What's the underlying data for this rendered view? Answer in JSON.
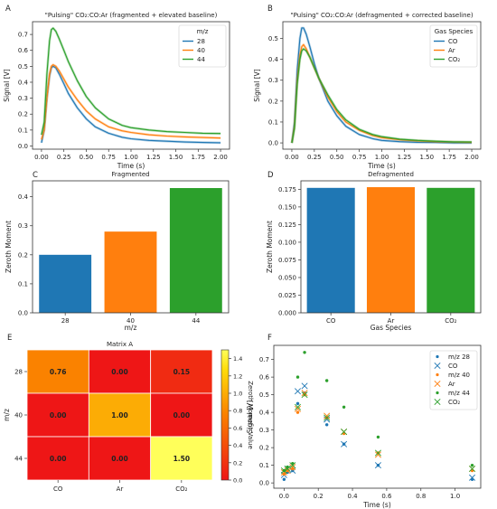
{
  "chart_data": [
    {
      "panel": "A",
      "type": "line",
      "title": "\"Pulsing\" CO₂:CO:Ar (fragmented + elevated baseline)",
      "xlabel": "Time (s)",
      "ylabel": "Signal [V]",
      "xlim": [
        -0.1,
        2.1
      ],
      "ylim": [
        -0.02,
        0.78
      ],
      "xticks": [
        "0.00",
        "0.25",
        "0.50",
        "0.75",
        "1.00",
        "1.25",
        "1.50",
        "1.75",
        "2.00"
      ],
      "yticks": [
        "0.0",
        "0.1",
        "0.2",
        "0.3",
        "0.4",
        "0.5",
        "0.6",
        "0.7"
      ],
      "legend_title": "m/z",
      "legend_position": "top-right",
      "series": [
        {
          "name": "28",
          "color": "#1f77b4",
          "x": [
            0.0,
            0.03,
            0.06,
            0.09,
            0.11,
            0.13,
            0.16,
            0.2,
            0.25,
            0.3,
            0.4,
            0.5,
            0.6,
            0.75,
            0.9,
            1.0,
            1.2,
            1.4,
            1.6,
            1.8,
            2.0
          ],
          "y": [
            0.02,
            0.1,
            0.3,
            0.44,
            0.49,
            0.5,
            0.49,
            0.45,
            0.39,
            0.33,
            0.24,
            0.17,
            0.12,
            0.08,
            0.055,
            0.045,
            0.035,
            0.03,
            0.025,
            0.022,
            0.02
          ]
        },
        {
          "name": "40",
          "color": "#ff7f0e",
          "x": [
            0.0,
            0.03,
            0.06,
            0.09,
            0.11,
            0.13,
            0.16,
            0.2,
            0.25,
            0.3,
            0.4,
            0.5,
            0.6,
            0.75,
            0.9,
            1.0,
            1.2,
            1.4,
            1.6,
            1.8,
            2.0
          ],
          "y": [
            0.04,
            0.1,
            0.3,
            0.45,
            0.5,
            0.51,
            0.5,
            0.47,
            0.42,
            0.37,
            0.29,
            0.22,
            0.17,
            0.12,
            0.095,
            0.085,
            0.07,
            0.062,
            0.057,
            0.053,
            0.05
          ]
        },
        {
          "name": "44",
          "color": "#2ca02c",
          "x": [
            0.0,
            0.03,
            0.06,
            0.09,
            0.11,
            0.13,
            0.16,
            0.2,
            0.25,
            0.3,
            0.4,
            0.5,
            0.6,
            0.75,
            0.9,
            1.0,
            1.2,
            1.4,
            1.6,
            1.8,
            2.0
          ],
          "y": [
            0.07,
            0.15,
            0.45,
            0.66,
            0.73,
            0.74,
            0.72,
            0.67,
            0.6,
            0.53,
            0.41,
            0.31,
            0.24,
            0.17,
            0.13,
            0.115,
            0.1,
            0.09,
            0.085,
            0.08,
            0.078
          ]
        }
      ]
    },
    {
      "panel": "B",
      "type": "line",
      "title": "\"Pulsing\" CO₂:CO:Ar (defragmented + corrected baseline)",
      "xlabel": "Time (s)",
      "ylabel": "Signal [V]",
      "xlim": [
        -0.1,
        2.1
      ],
      "ylim": [
        -0.03,
        0.58
      ],
      "xticks": [
        "0.00",
        "0.25",
        "0.50",
        "0.75",
        "1.00",
        "1.25",
        "1.50",
        "1.75",
        "2.00"
      ],
      "yticks": [
        "0.0",
        "0.1",
        "0.2",
        "0.3",
        "0.4",
        "0.5"
      ],
      "legend_title": "Gas Species",
      "legend_position": "top-right",
      "series": [
        {
          "name": "CO",
          "color": "#1f77b4",
          "x": [
            0.0,
            0.03,
            0.06,
            0.09,
            0.11,
            0.13,
            0.16,
            0.2,
            0.25,
            0.3,
            0.4,
            0.5,
            0.6,
            0.75,
            0.9,
            1.0,
            1.2,
            1.4,
            1.6,
            1.8,
            2.0
          ],
          "y": [
            0.0,
            0.1,
            0.35,
            0.5,
            0.55,
            0.55,
            0.52,
            0.46,
            0.38,
            0.31,
            0.2,
            0.13,
            0.08,
            0.04,
            0.02,
            0.012,
            0.006,
            0.003,
            0.002,
            0.0,
            0.0
          ]
        },
        {
          "name": "Ar",
          "color": "#ff7f0e",
          "x": [
            0.0,
            0.03,
            0.06,
            0.09,
            0.11,
            0.13,
            0.16,
            0.2,
            0.25,
            0.3,
            0.4,
            0.5,
            0.6,
            0.75,
            0.9,
            1.0,
            1.2,
            1.4,
            1.6,
            1.8,
            2.0
          ],
          "y": [
            0.0,
            0.08,
            0.3,
            0.42,
            0.46,
            0.47,
            0.45,
            0.41,
            0.36,
            0.31,
            0.22,
            0.15,
            0.1,
            0.06,
            0.035,
            0.025,
            0.015,
            0.01,
            0.006,
            0.004,
            0.003
          ]
        },
        {
          "name": "CO₂",
          "color": "#2ca02c",
          "x": [
            0.0,
            0.03,
            0.06,
            0.09,
            0.11,
            0.13,
            0.16,
            0.2,
            0.25,
            0.3,
            0.4,
            0.5,
            0.6,
            0.75,
            0.9,
            1.0,
            1.2,
            1.4,
            1.6,
            1.8,
            2.0
          ],
          "y": [
            0.0,
            0.07,
            0.28,
            0.4,
            0.44,
            0.45,
            0.44,
            0.41,
            0.36,
            0.31,
            0.23,
            0.16,
            0.11,
            0.065,
            0.04,
            0.03,
            0.018,
            0.012,
            0.008,
            0.005,
            0.004
          ]
        }
      ]
    },
    {
      "panel": "C",
      "type": "bar",
      "title": "Fragmented",
      "xlabel": "m/z",
      "ylabel": "Zeroth Moment",
      "categories": [
        "28",
        "40",
        "44"
      ],
      "values": [
        0.2,
        0.28,
        0.43
      ],
      "colors": [
        "#1f77b4",
        "#ff7f0e",
        "#2ca02c"
      ],
      "ylim": [
        0,
        0.455
      ],
      "yticks": [
        "0.0",
        "0.1",
        "0.2",
        "0.3",
        "0.4"
      ]
    },
    {
      "panel": "D",
      "type": "bar",
      "title": "Defragmented",
      "xlabel": "Gas Species",
      "ylabel": "Zeroth Moment",
      "categories": [
        "CO",
        "Ar",
        "CO₂"
      ],
      "values": [
        0.177,
        0.178,
        0.177
      ],
      "colors": [
        "#1f77b4",
        "#ff7f0e",
        "#2ca02c"
      ],
      "ylim": [
        0,
        0.187
      ],
      "yticks": [
        "0.000",
        "0.025",
        "0.050",
        "0.075",
        "0.100",
        "0.125",
        "0.150",
        "0.175"
      ]
    },
    {
      "panel": "E",
      "type": "heatmap",
      "title": "Matrix A",
      "xlabel": "",
      "ylabel": "m/z",
      "x_categories": [
        "CO",
        "Ar",
        "CO₂"
      ],
      "y_categories": [
        "28",
        "40",
        "44"
      ],
      "values": [
        [
          0.76,
          0.0,
          0.15
        ],
        [
          0.0,
          1.0,
          0.0
        ],
        [
          0.0,
          0.0,
          1.5
        ]
      ],
      "labels": [
        [
          "0.76",
          "0.00",
          "0.15"
        ],
        [
          "0.00",
          "1.00",
          "0.00"
        ],
        [
          "0.00",
          "0.00",
          "1.50"
        ]
      ],
      "colorbar_label": "Zeroth Moment Value",
      "vmin": 0,
      "vmax": 1.5,
      "colorbar_ticks": [
        "0.0",
        "0.2",
        "0.4",
        "0.6",
        "0.8",
        "1.0",
        "1.2",
        "1.4"
      ]
    },
    {
      "panel": "F",
      "type": "scatter",
      "title": "",
      "xlabel": "Time (s)",
      "ylabel": "Signal [V]",
      "xlim": [
        -0.06,
        1.15
      ],
      "ylim": [
        -0.03,
        0.78
      ],
      "xticks": [
        "0.0",
        "0.2",
        "0.4",
        "0.6",
        "0.8",
        "1.0"
      ],
      "yticks": [
        "0.0",
        "0.1",
        "0.2",
        "0.3",
        "0.4",
        "0.5",
        "0.6",
        "0.7"
      ],
      "legend_position": "top-right",
      "series": [
        {
          "name": "m/z 28",
          "marker": "dot",
          "color": "#1f77b4",
          "x": [
            0.0,
            0.02,
            0.05,
            0.08,
            0.12,
            0.25,
            0.35,
            0.55,
            1.1
          ],
          "y": [
            0.02,
            0.06,
            0.07,
            0.45,
            0.51,
            0.33,
            0.22,
            0.1,
            0.02
          ]
        },
        {
          "name": "CO",
          "marker": "x",
          "color": "#1f77b4",
          "x": [
            0.0,
            0.02,
            0.05,
            0.08,
            0.12,
            0.25,
            0.35,
            0.55,
            1.1
          ],
          "y": [
            0.045,
            0.08,
            0.07,
            0.52,
            0.55,
            0.36,
            0.22,
            0.1,
            0.03
          ]
        },
        {
          "name": "m/z 40",
          "marker": "dot",
          "color": "#ff7f0e",
          "x": [
            0.0,
            0.02,
            0.05,
            0.08,
            0.12,
            0.25,
            0.35,
            0.55,
            1.1
          ],
          "y": [
            0.05,
            0.07,
            0.08,
            0.4,
            0.5,
            0.37,
            0.28,
            0.17,
            0.07
          ]
        },
        {
          "name": "Ar",
          "marker": "x",
          "color": "#ff7f0e",
          "x": [
            0.0,
            0.02,
            0.05,
            0.08,
            0.12,
            0.25,
            0.35,
            0.55,
            1.1
          ],
          "y": [
            0.06,
            0.07,
            0.09,
            0.42,
            0.51,
            0.38,
            0.29,
            0.16,
            0.08
          ]
        },
        {
          "name": "m/z 44",
          "marker": "dot",
          "color": "#2ca02c",
          "x": [
            0.0,
            0.02,
            0.05,
            0.08,
            0.12,
            0.25,
            0.35,
            0.55,
            1.1
          ],
          "y": [
            0.07,
            0.09,
            0.11,
            0.6,
            0.74,
            0.58,
            0.43,
            0.26,
            0.1
          ]
        },
        {
          "name": "CO₂",
          "marker": "x",
          "color": "#2ca02c",
          "x": [
            0.0,
            0.02,
            0.05,
            0.08,
            0.12,
            0.25,
            0.35,
            0.55,
            1.1
          ],
          "y": [
            0.07,
            0.08,
            0.1,
            0.43,
            0.5,
            0.37,
            0.29,
            0.17,
            0.08
          ]
        }
      ]
    }
  ]
}
